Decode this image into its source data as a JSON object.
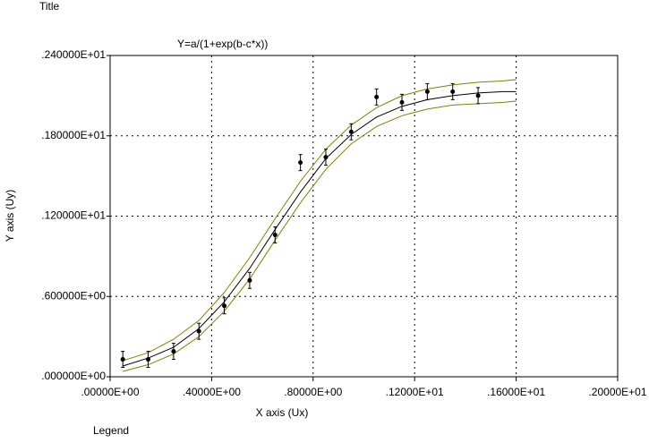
{
  "chart_data": {
    "type": "scatter",
    "title": "Title",
    "subtitle": "Y=a/(1+exp(b-c*x))",
    "x_label": "X axis (Ux)",
    "y_label": "Y axis (Uy)",
    "legend_label": "Legend",
    "x": [
      0.05,
      0.15,
      0.25,
      0.35,
      0.45,
      0.55,
      0.65,
      0.75,
      0.85,
      0.95,
      1.05,
      1.15,
      1.25,
      1.35,
      1.45
    ],
    "values": [
      0.13,
      0.13,
      0.19,
      0.34,
      0.53,
      0.72,
      1.06,
      1.6,
      1.64,
      1.83,
      2.09,
      2.05,
      2.13,
      2.13,
      2.1
    ],
    "errors": [
      0.06,
      0.06,
      0.06,
      0.06,
      0.06,
      0.06,
      0.06,
      0.06,
      0.06,
      0.06,
      0.06,
      0.06,
      0.06,
      0.06,
      0.06
    ],
    "color": "#000000",
    "series": [
      {
        "color": "#000000",
        "x": [
          0.05,
          0.15,
          0.25,
          0.35,
          0.45,
          0.55,
          0.65,
          0.75,
          0.85,
          0.95,
          1.05,
          1.15,
          1.25,
          1.35,
          1.45,
          1.55,
          1.6
        ],
        "values": [
          0.08,
          0.14,
          0.22,
          0.36,
          0.56,
          0.81,
          1.1,
          1.38,
          1.63,
          1.81,
          1.94,
          2.02,
          2.07,
          2.1,
          2.12,
          2.13,
          2.13
        ]
      },
      {
        "color": "#808000",
        "x": [
          0.05,
          0.15,
          0.25,
          0.35,
          0.45,
          0.55,
          0.65,
          0.75,
          0.85,
          0.95,
          1.05,
          1.15,
          1.25,
          1.35,
          1.45,
          1.55,
          1.6
        ],
        "values": [
          0.12,
          0.18,
          0.28,
          0.42,
          0.63,
          0.89,
          1.18,
          1.46,
          1.7,
          1.88,
          2.01,
          2.1,
          2.15,
          2.18,
          2.2,
          2.21,
          2.22
        ]
      },
      {
        "color": "#808000",
        "x": [
          0.05,
          0.15,
          0.25,
          0.35,
          0.45,
          0.55,
          0.65,
          0.75,
          0.85,
          0.95,
          1.05,
          1.15,
          1.25,
          1.35,
          1.45,
          1.55,
          1.6
        ],
        "values": [
          0.04,
          0.09,
          0.17,
          0.3,
          0.49,
          0.73,
          1.02,
          1.3,
          1.55,
          1.74,
          1.87,
          1.95,
          2.0,
          2.03,
          2.04,
          2.05,
          2.06
        ]
      }
    ],
    "xlim": [
      0,
      2.0
    ],
    "ylim": [
      0,
      2.4
    ],
    "xticks": [
      {
        "value": 0,
        "label": ".00000E+00"
      },
      {
        "value": 0.4,
        "label": ".40000E+00"
      },
      {
        "value": 0.8,
        "label": ".80000E+00"
      },
      {
        "value": 1.2,
        "label": ".12000E+01"
      },
      {
        "value": 1.6,
        "label": ".16000E+01"
      },
      {
        "value": 2.0,
        "label": ".20000E+01"
      }
    ],
    "yticks": [
      {
        "value": 0,
        "label": ".000000E+00"
      },
      {
        "value": 0.6,
        "label": ".600000E+00"
      },
      {
        "value": 1.2,
        "label": ".120000E+01"
      },
      {
        "value": 1.8,
        "label": ".180000E+01"
      },
      {
        "value": 2.4,
        "label": ".240000E+01"
      }
    ],
    "grid": true
  }
}
